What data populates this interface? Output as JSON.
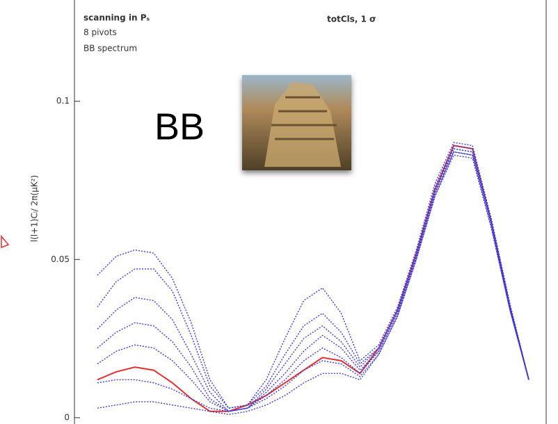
{
  "chart_data": {
    "type": "line",
    "lines": [
      "scanning in Pₛ",
      "8 pivots",
      "BB spectrum"
    ],
    "overlay_title": "BB",
    "y_label": "l(l+1)Cₗ/ 2π(μK²)",
    "categories": [
      null,
      null,
      null,
      null,
      null,
      null,
      null,
      null,
      null,
      null,
      null,
      null,
      null,
      null,
      null,
      null,
      null,
      null,
      null,
      null,
      null,
      null,
      null,
      null
    ],
    "ylim": [
      -0.002,
      0.132
    ],
    "yticks": [
      0,
      0.05,
      0.1
    ],
    "series": [
      {
        "color": "#e03030",
        "values": [
          0.012,
          0.0145,
          0.016,
          0.015,
          0.011,
          0.006,
          0.002,
          0.002,
          0.004,
          0.007,
          0.011,
          0.015,
          0.019,
          0.018,
          0.014,
          0.022,
          0.034,
          0.052,
          0.072,
          0.086,
          0.085,
          0.062,
          0.035,
          0.012
        ]
      },
      {
        "name": "totCls, 1 σ",
        "color": "#3a3ad8",
        "values": [
          0.045,
          0.051,
          0.053,
          0.052,
          0.044,
          0.03,
          0.012,
          0.003,
          0.004,
          0.012,
          0.025,
          0.037,
          0.041,
          0.033,
          0.018,
          0.023,
          0.035,
          0.053,
          0.074,
          0.087,
          0.086,
          0.063,
          0.036,
          0.012
        ]
      },
      {
        "color": "#3a3ad8",
        "values": [
          0.035,
          0.043,
          0.047,
          0.047,
          0.04,
          0.026,
          0.01,
          0.003,
          0.004,
          0.01,
          0.02,
          0.029,
          0.033,
          0.027,
          0.017,
          0.022,
          0.034,
          0.052,
          0.073,
          0.086,
          0.085,
          0.062,
          0.035,
          0.012
        ]
      },
      {
        "color": "#3a3ad8",
        "values": [
          0.028,
          0.034,
          0.038,
          0.037,
          0.031,
          0.02,
          0.008,
          0.002,
          0.003,
          0.009,
          0.017,
          0.025,
          0.029,
          0.024,
          0.016,
          0.022,
          0.034,
          0.051,
          0.072,
          0.085,
          0.084,
          0.062,
          0.035,
          0.012
        ]
      },
      {
        "color": "#3a3ad8",
        "values": [
          0.022,
          0.027,
          0.03,
          0.029,
          0.024,
          0.016,
          0.006,
          0.002,
          0.003,
          0.008,
          0.014,
          0.021,
          0.026,
          0.022,
          0.015,
          0.021,
          0.033,
          0.051,
          0.071,
          0.084,
          0.083,
          0.061,
          0.034,
          0.012
        ]
      },
      {
        "color": "#3a3ad8",
        "values": [
          0.017,
          0.021,
          0.023,
          0.022,
          0.018,
          0.012,
          0.005,
          0.002,
          0.003,
          0.007,
          0.012,
          0.018,
          0.022,
          0.019,
          0.014,
          0.021,
          0.033,
          0.05,
          0.07,
          0.083,
          0.082,
          0.06,
          0.034,
          0.012
        ]
      },
      {
        "color": "#3a3ad8",
        "values": [
          0.011,
          0.012,
          0.012,
          0.011,
          0.009,
          0.006,
          0.003,
          0.002,
          0.003,
          0.006,
          0.01,
          0.015,
          0.018,
          0.017,
          0.013,
          0.02,
          0.032,
          0.05,
          0.07,
          0.084,
          0.083,
          0.06,
          0.034,
          0.012
        ]
      },
      {
        "color": "#3a3ad8",
        "values": [
          0.003,
          0.004,
          0.005,
          0.005,
          0.004,
          0.003,
          0.002,
          0.001,
          0.002,
          0.004,
          0.007,
          0.011,
          0.014,
          0.014,
          0.012,
          0.02,
          0.032,
          0.05,
          0.071,
          0.085,
          0.084,
          0.061,
          0.034,
          0.012
        ]
      }
    ]
  }
}
